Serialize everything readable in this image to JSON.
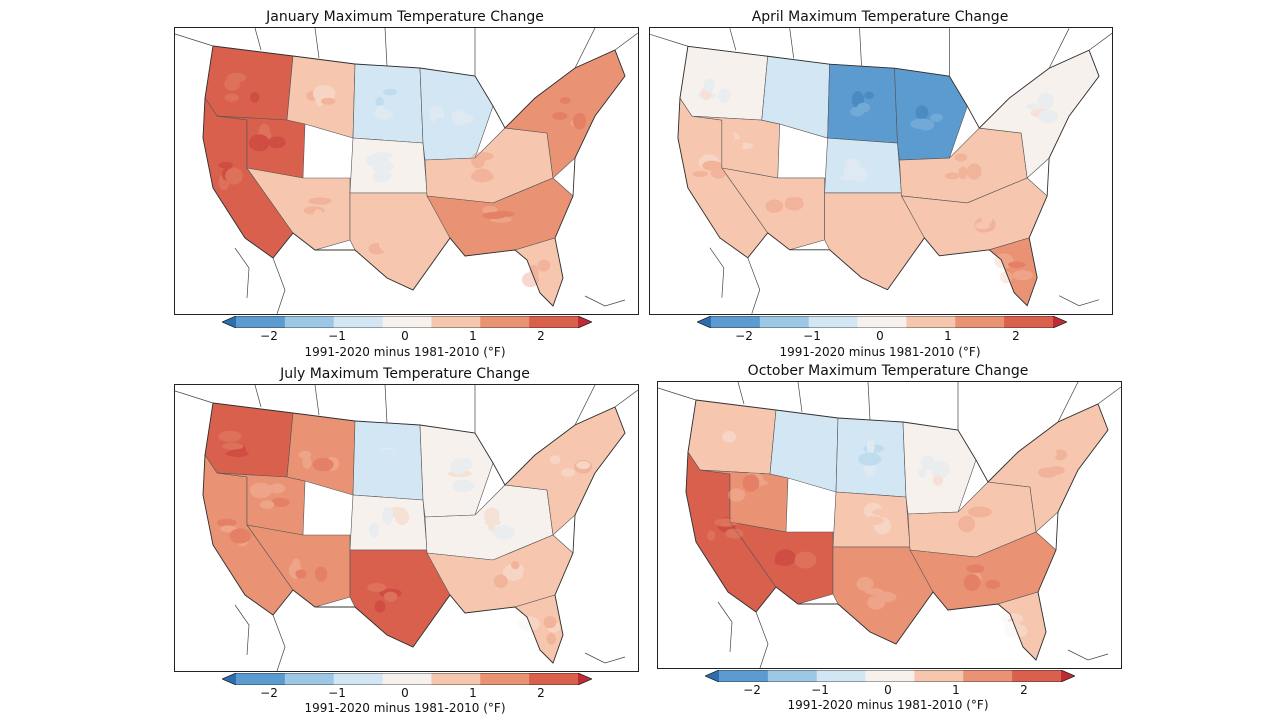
{
  "colorbar": {
    "bins": [
      "#2c6fb0",
      "#5b9bd0",
      "#9cc8e6",
      "#d2e6f3",
      "#f7f1ee",
      "#f6c6ae",
      "#ea9274",
      "#d9604c",
      "#c02a35"
    ],
    "tick_labels": [
      "−2",
      "−1",
      "0",
      "1",
      "2"
    ],
    "tick_values": [
      -2,
      -1,
      0,
      1,
      2
    ],
    "range": [
      -2.5,
      2.5
    ]
  },
  "panels": [
    {
      "title": "January Maximum Temperature Change",
      "colorbar_label": "1991-2020 minus 1981-2010 (°F)",
      "regions": [
        {
          "name": "Pacific Northwest",
          "value": 1.5
        },
        {
          "name": "California",
          "value": 1.8
        },
        {
          "name": "Great Basin",
          "value": 1.5
        },
        {
          "name": "Northern Rockies",
          "value": 0.5
        },
        {
          "name": "Southwest",
          "value": 0.8
        },
        {
          "name": "Northern Plains",
          "value": -0.7
        },
        {
          "name": "Central Plains",
          "value": 0.2
        },
        {
          "name": "Southern Plains",
          "value": 0.8
        },
        {
          "name": "Upper Midwest",
          "value": -0.4
        },
        {
          "name": "Ohio Valley",
          "value": 0.9
        },
        {
          "name": "Southeast",
          "value": 1.3
        },
        {
          "name": "Northeast",
          "value": 1.2
        },
        {
          "name": "Florida",
          "value": 0.9
        }
      ]
    },
    {
      "title": "April Maximum Temperature Change",
      "colorbar_label": "1991-2020 minus 1981-2010 (°F)",
      "regions": [
        {
          "name": "Pacific Northwest",
          "value": 0.2
        },
        {
          "name": "California",
          "value": 0.6
        },
        {
          "name": "Great Basin",
          "value": 0.3
        },
        {
          "name": "Northern Rockies",
          "value": -0.8
        },
        {
          "name": "Southwest",
          "value": 0.8
        },
        {
          "name": "Northern Plains",
          "value": -2.0
        },
        {
          "name": "Central Plains",
          "value": -0.3
        },
        {
          "name": "Southern Plains",
          "value": 0.8
        },
        {
          "name": "Upper Midwest",
          "value": -1.8
        },
        {
          "name": "Ohio Valley",
          "value": 0.6
        },
        {
          "name": "Southeast",
          "value": 0.9
        },
        {
          "name": "Northeast",
          "value": -0.2
        },
        {
          "name": "Florida",
          "value": 1.3
        }
      ]
    },
    {
      "title": "July Maximum Temperature Change",
      "colorbar_label": "1991-2020 minus 1981-2010 (°F)",
      "regions": [
        {
          "name": "Pacific Northwest",
          "value": 1.8
        },
        {
          "name": "California",
          "value": 1.3
        },
        {
          "name": "Great Basin",
          "value": 1.2
        },
        {
          "name": "Northern Rockies",
          "value": 1.0
        },
        {
          "name": "Southwest",
          "value": 1.2
        },
        {
          "name": "Northern Plains",
          "value": -0.3
        },
        {
          "name": "Central Plains",
          "value": -0.2
        },
        {
          "name": "Southern Plains",
          "value": 1.5
        },
        {
          "name": "Upper Midwest",
          "value": -0.2
        },
        {
          "name": "Ohio Valley",
          "value": -0.1
        },
        {
          "name": "Southeast",
          "value": 0.6
        },
        {
          "name": "Northeast",
          "value": 0.7
        },
        {
          "name": "Florida",
          "value": 0.6
        }
      ]
    },
    {
      "title": "October Maximum Temperature Change",
      "colorbar_label": "1991-2020 minus 1981-2010 (°F)",
      "regions": [
        {
          "name": "Pacific Northwest",
          "value": 0.3
        },
        {
          "name": "California",
          "value": 1.6
        },
        {
          "name": "Great Basin",
          "value": 1.0
        },
        {
          "name": "Northern Rockies",
          "value": -0.4
        },
        {
          "name": "Southwest",
          "value": 1.7
        },
        {
          "name": "Northern Plains",
          "value": -0.7
        },
        {
          "name": "Central Plains",
          "value": 0.4
        },
        {
          "name": "Southern Plains",
          "value": 1.2
        },
        {
          "name": "Upper Midwest",
          "value": 0.2
        },
        {
          "name": "Ohio Valley",
          "value": 0.8
        },
        {
          "name": "Southeast",
          "value": 1.0
        },
        {
          "name": "Northeast",
          "value": 0.8
        },
        {
          "name": "Florida",
          "value": 0.6
        }
      ]
    }
  ]
}
